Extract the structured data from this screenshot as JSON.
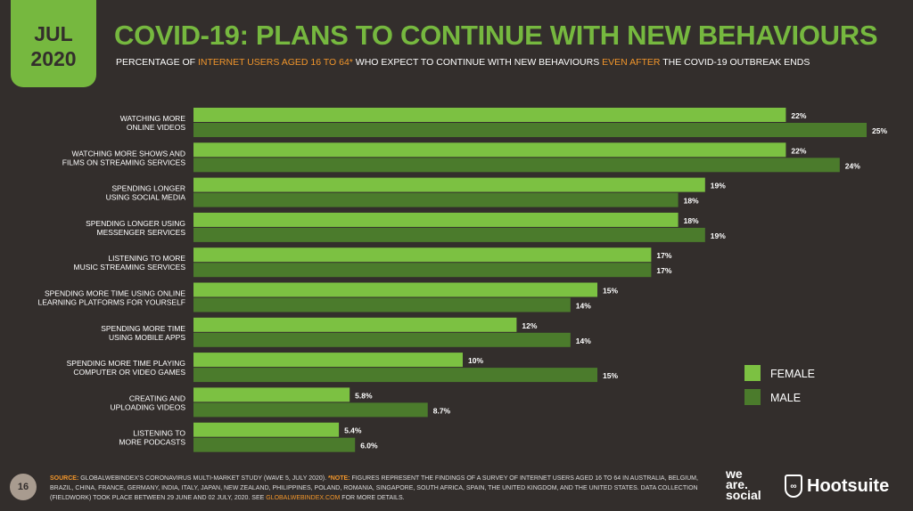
{
  "date_badge": {
    "month": "JUL",
    "year": "2020"
  },
  "header": {
    "title": "COVID-19: PLANS TO CONTINUE WITH NEW BEHAVIOURS",
    "subtitle_parts": [
      "PERCENTAGE OF ",
      "INTERNET USERS AGED 16 TO 64*",
      " WHO EXPECT TO CONTINUE WITH NEW BEHAVIOURS ",
      "EVEN AFTER",
      " THE COVID-19 OUTBREAK ENDS"
    ]
  },
  "colors": {
    "female": "#7cc142",
    "male": "#4b7b2c",
    "background": "#332e2c",
    "accent": "#f0952b"
  },
  "chart_data": {
    "type": "bar",
    "orientation": "horizontal",
    "legend_position": "right",
    "grid": false,
    "categories": [
      [
        "WATCHING MORE",
        "ONLINE VIDEOS"
      ],
      [
        "WATCHING MORE SHOWS AND",
        "FILMS ON STREAMING SERVICES"
      ],
      [
        "SPENDING LONGER",
        "USING SOCIAL MEDIA"
      ],
      [
        "SPENDING LONGER USING",
        "MESSENGER SERVICES"
      ],
      [
        "LISTENING TO MORE",
        "MUSIC STREAMING SERVICES"
      ],
      [
        "SPENDING MORE TIME USING ONLINE",
        "LEARNING PLATFORMS FOR YOURSELF"
      ],
      [
        "SPENDING MORE TIME",
        "USING MOBILE APPS"
      ],
      [
        "SPENDING MORE TIME PLAYING",
        "COMPUTER OR VIDEO GAMES"
      ],
      [
        "CREATING AND",
        "UPLOADING VIDEOS"
      ],
      [
        "LISTENING TO",
        "MORE PODCASTS"
      ]
    ],
    "series": [
      {
        "name": "FEMALE",
        "values": [
          22,
          22,
          19,
          18,
          17,
          15,
          12,
          10,
          5.8,
          5.4
        ],
        "labels": [
          "22%",
          "22%",
          "19%",
          "18%",
          "17%",
          "15%",
          "12%",
          "10%",
          "5.8%",
          "5.4%"
        ]
      },
      {
        "name": "MALE",
        "values": [
          25,
          24,
          18,
          19,
          17,
          14,
          14,
          15,
          8.7,
          6.0
        ],
        "labels": [
          "25%",
          "24%",
          "18%",
          "19%",
          "17%",
          "14%",
          "14%",
          "15%",
          "8.7%",
          "6.0%"
        ]
      }
    ],
    "xlim": [
      0,
      25
    ]
  },
  "watermark": "we are social  Hootsuite  global web index",
  "footer": {
    "page": "16",
    "source_label": "SOURCE:",
    "source_text": " GLOBALWEBINDEX'S CORONAVIRUS MULTI-MARKET STUDY (WAVE 5, JULY 2020). ",
    "note_label": "*NOTE:",
    "note_text": " FIGURES REPRESENT THE FINDINGS OF A SURVEY OF INTERNET USERS AGED 16 TO 64 IN AUSTRALIA, BELGIUM, BRAZIL, CHINA, FRANCE, GERMANY, INDIA, ITALY, JAPAN, NEW ZEALAND, PHILIPPINES, POLAND, ROMANIA, SINGAPORE, SOUTH AFRICA, SPAIN, THE UNITED KINGDOM, AND THE UNITED STATES. DATA COLLECTION (FIELDWORK) TOOK PLACE BETWEEN 29 JUNE AND 02 JULY, 2020. SEE ",
    "link": "GLOBALWEBINDEX.COM",
    "tail": " FOR MORE DETAILS.",
    "logo1": "we are social",
    "logo2": "Hootsuite"
  }
}
